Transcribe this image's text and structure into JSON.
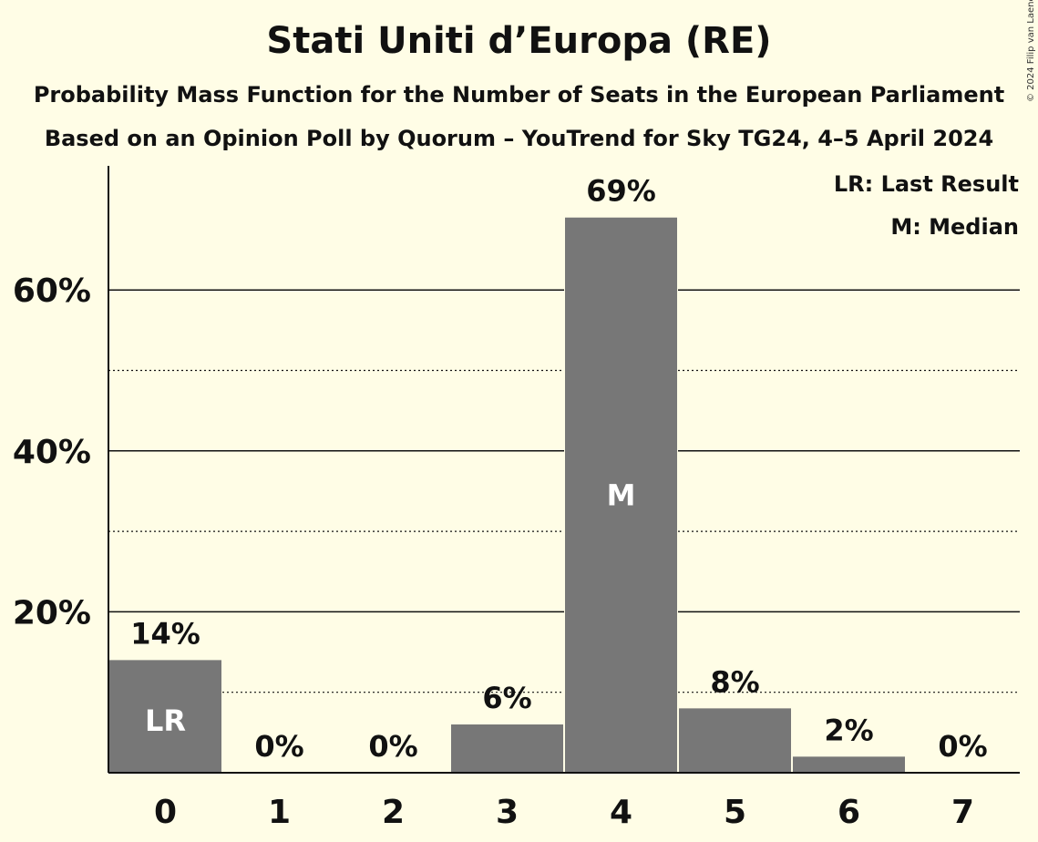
{
  "title": "Stati Uniti d’Europa (RE)",
  "subtitle": "Probability Mass Function for the Number of Seats in the European Parliament",
  "subtitle2": "Based on an Opinion Poll by Quorum – YouTrend for Sky TG24, 4–5 April 2024",
  "copyright": "© 2024 Filip van Laenen",
  "legend": {
    "last_result": "LR: Last Result",
    "median": "M: Median"
  },
  "colors": {
    "background": "#FFFDE6",
    "bar": "#777777"
  },
  "chart_data": {
    "type": "bar",
    "categories": [
      "0",
      "1",
      "2",
      "3",
      "4",
      "5",
      "6",
      "7"
    ],
    "values": [
      14,
      0,
      0,
      6,
      69,
      8,
      2,
      0
    ],
    "data_labels": [
      "14%",
      "0%",
      "0%",
      "6%",
      "69%",
      "8%",
      "2%",
      "0%"
    ],
    "bar_markers": [
      "LR",
      "",
      "",
      "",
      "M",
      "",
      "",
      ""
    ],
    "yticks": [
      "20%",
      "40%",
      "60%"
    ],
    "ylim": [
      0,
      75
    ],
    "major_grid": [
      20,
      40,
      60
    ],
    "minor_grid": [
      10,
      30,
      50
    ],
    "legend_position": "top-right"
  }
}
